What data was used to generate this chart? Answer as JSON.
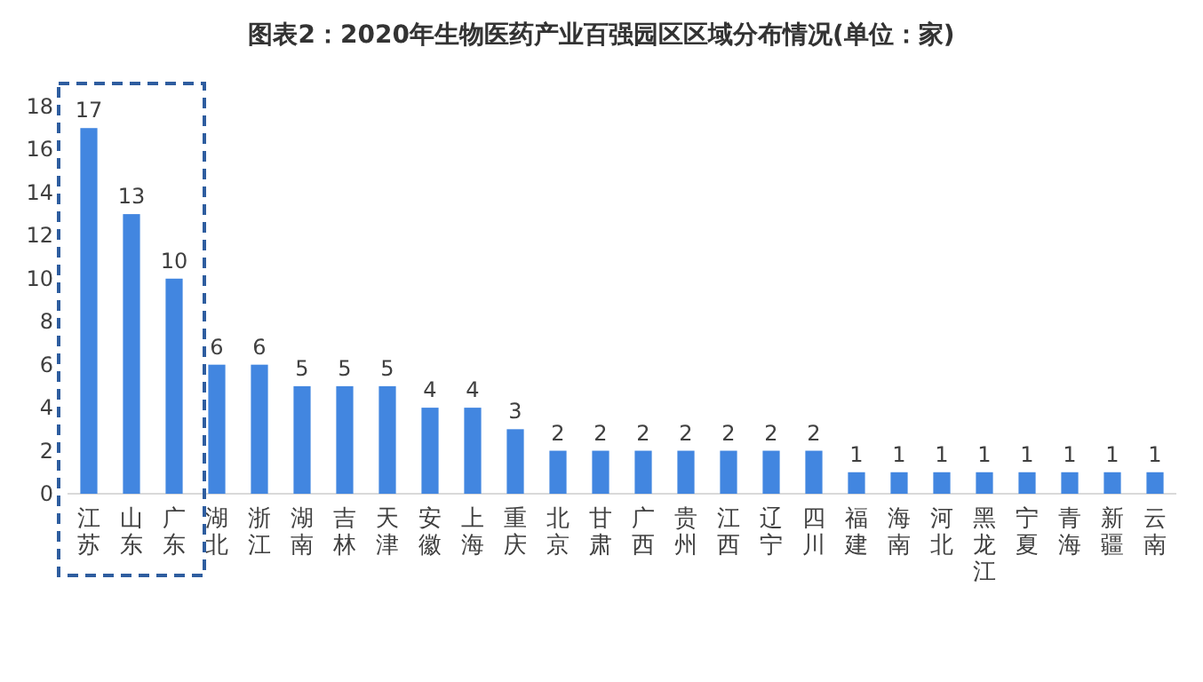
{
  "chart_data": {
    "type": "bar",
    "title": "图表2：2020年生物医药产业百强园区区域分布情况(单位：家)",
    "categories": [
      "江苏",
      "山东",
      "广东",
      "湖北",
      "浙江",
      "湖南",
      "吉林",
      "天津",
      "安徽",
      "上海",
      "重庆",
      "北京",
      "甘肃",
      "广西",
      "贵州",
      "江西",
      "辽宁",
      "四川",
      "福建",
      "海南",
      "河北",
      "黑龙江",
      "宁夏",
      "青海",
      "新疆",
      "云南"
    ],
    "values": [
      17,
      13,
      10,
      6,
      6,
      5,
      5,
      5,
      4,
      4,
      3,
      2,
      2,
      2,
      2,
      2,
      2,
      2,
      1,
      1,
      1,
      1,
      1,
      1,
      1,
      1
    ],
    "color": "#4286e0",
    "ylim": [
      0,
      18
    ],
    "yticks": [
      0,
      2,
      4,
      6,
      8,
      10,
      12,
      14,
      16,
      18
    ],
    "data_labels": true,
    "grid": false
  }
}
